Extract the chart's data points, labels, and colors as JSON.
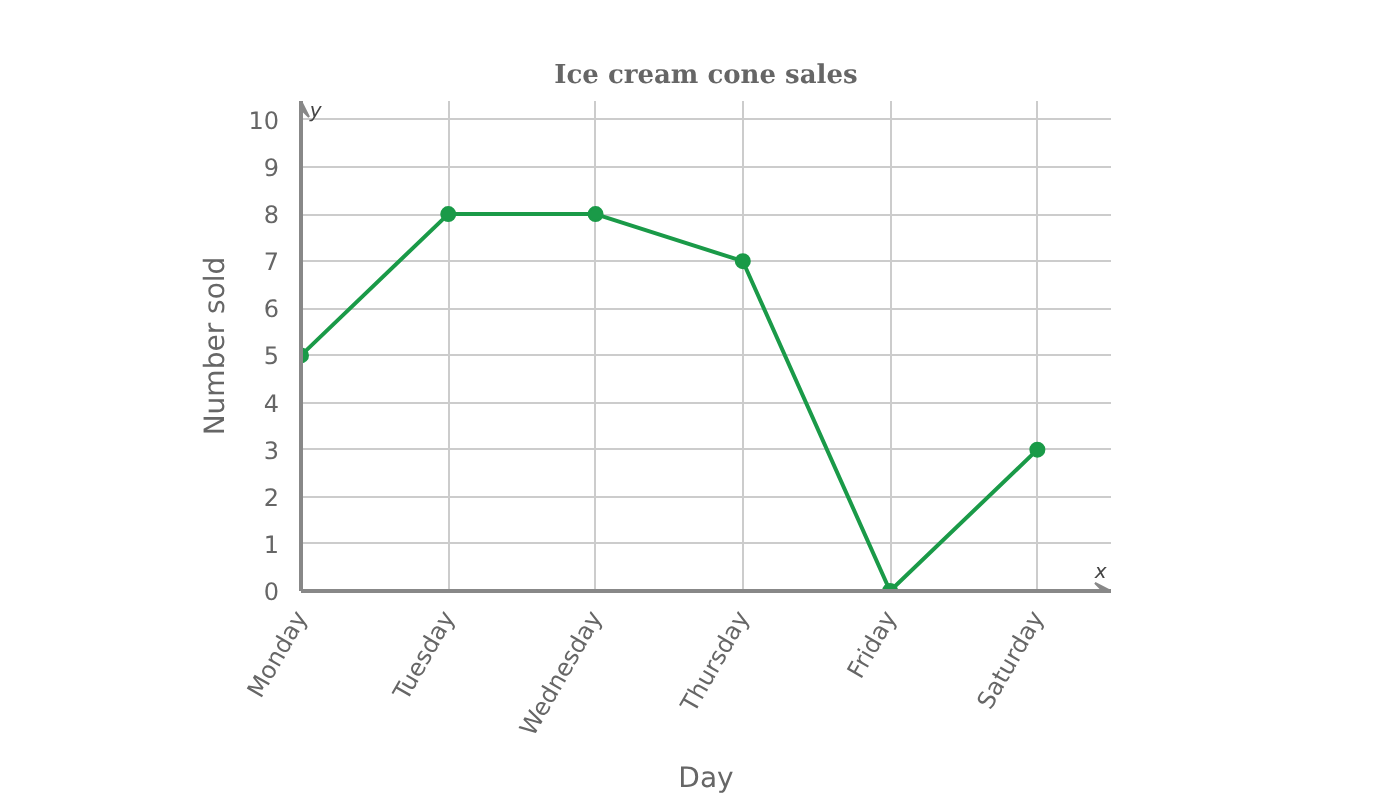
{
  "chart_data": {
    "type": "line",
    "title": "Ice cream cone sales",
    "xlabel": "Day",
    "ylabel": "Number sold",
    "annotations": [
      "x",
      "y"
    ],
    "categories": [
      "Monday",
      "Tuesday",
      "Wednesday",
      "Thursday",
      "Friday",
      "Saturday"
    ],
    "series": [
      {
        "color": "#1a9a48",
        "values": [
          5,
          8,
          8,
          7,
          0,
          3
        ]
      }
    ],
    "ylim": [
      0,
      10.4
    ],
    "yticks": [
      0,
      1,
      2,
      3,
      4,
      5,
      6,
      7,
      8,
      9,
      10
    ],
    "grid": true,
    "marker": "circle",
    "line_style": "solid"
  }
}
